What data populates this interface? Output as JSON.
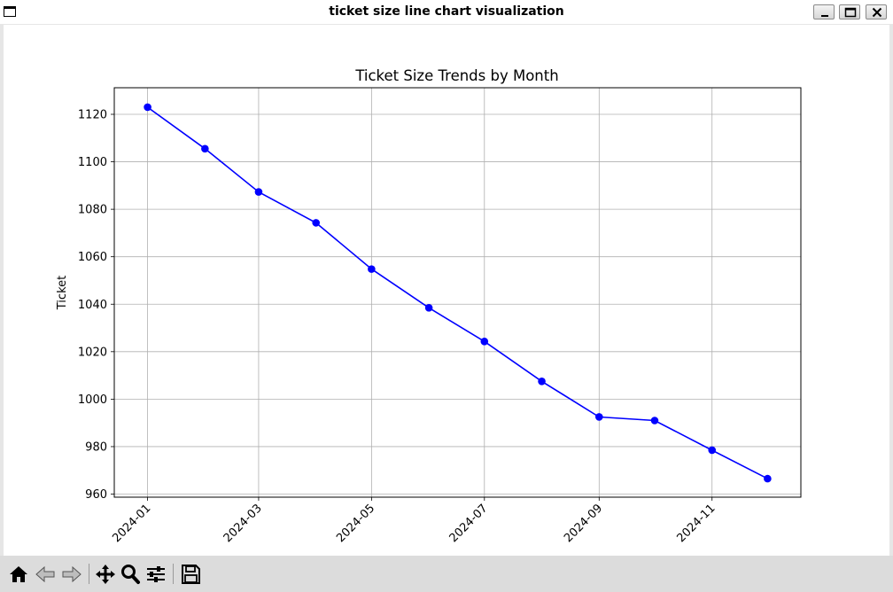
{
  "window": {
    "title": "ticket size line chart visualization"
  },
  "toolbar": {
    "buttons": [
      {
        "name": "home-icon"
      },
      {
        "name": "back-icon"
      },
      {
        "name": "forward-icon"
      },
      {
        "name": "pan-icon"
      },
      {
        "name": "zoom-icon"
      },
      {
        "name": "configure-subplots-icon"
      },
      {
        "name": "save-icon"
      }
    ]
  },
  "chart_data": {
    "type": "line",
    "title": "Ticket Size Trends by Month",
    "xlabel": "",
    "ylabel": "Ticket",
    "x": [
      "2024-01-01",
      "2024-02-01",
      "2024-03-01",
      "2024-04-01",
      "2024-05-01",
      "2024-06-01",
      "2024-07-01",
      "2024-08-01",
      "2024-09-01",
      "2024-10-01",
      "2024-11-01",
      "2024-12-01"
    ],
    "series": [
      {
        "values": [
          1123,
          1105.5,
          1087.3,
          1074.3,
          1054.8,
          1038.5,
          1024.3,
          1007.5,
          992.5,
          991,
          978.5,
          966.5
        ]
      }
    ],
    "xticks": [
      "2024-01",
      "2024-03",
      "2024-05",
      "2024-07",
      "2024-09",
      "2024-11"
    ],
    "yticks": [
      960,
      980,
      1000,
      1020,
      1040,
      1060,
      1080,
      1100,
      1120
    ],
    "ylim": [
      958.7,
      1131.2
    ],
    "xlim": [
      "2023-12-14",
      "2024-12-19"
    ],
    "grid": true,
    "line_color": "#0000ff",
    "marker": "circle"
  }
}
